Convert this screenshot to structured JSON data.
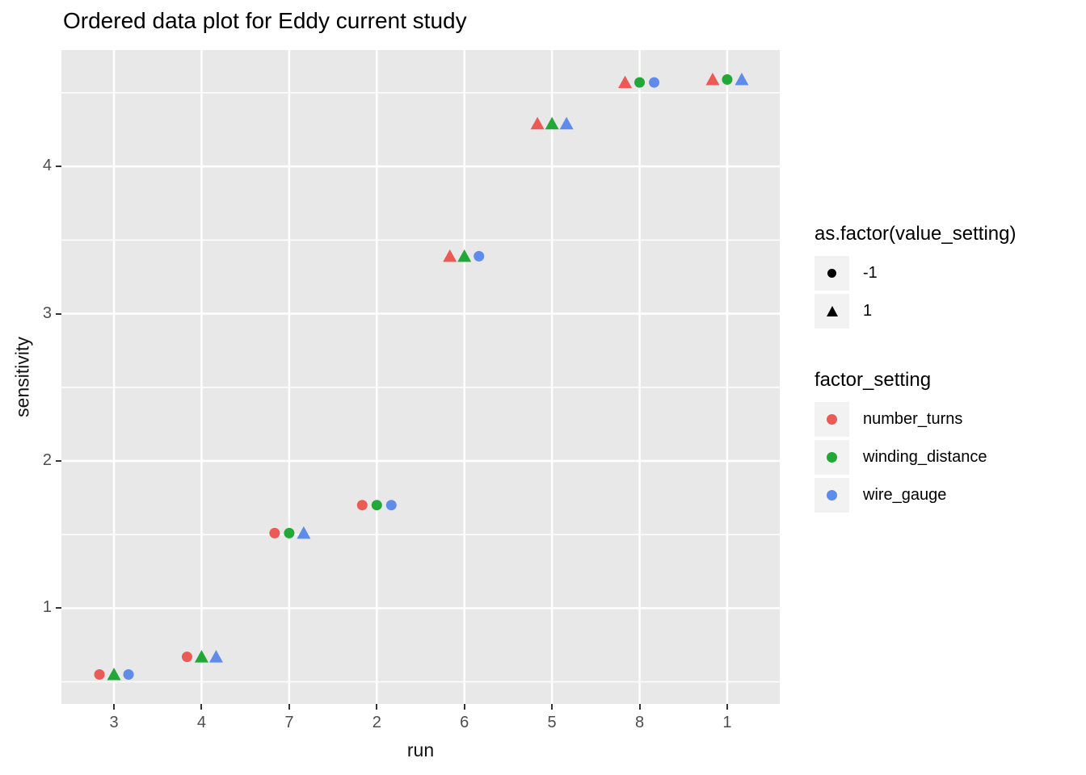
{
  "title": "Ordered data plot for Eddy current study",
  "colors": {
    "panel_bg": "#E8E8E8",
    "grid": "#FFFFFF",
    "tick_mark": "#333333",
    "tick_label": "#4D4D4D",
    "text": "#000000",
    "legend_key_bg": "#F2F2F2"
  },
  "chart_data": {
    "type": "scatter",
    "title": "Ordered data plot for Eddy current study",
    "xlabel": "run",
    "ylabel": "sensitivity",
    "x_categories": [
      "3",
      "4",
      "7",
      "2",
      "6",
      "5",
      "8",
      "1"
    ],
    "y_ticks": [
      1,
      2,
      3,
      4
    ],
    "y_minor_ticks": [
      0.5,
      1.5,
      2.5,
      3.5,
      4.5
    ],
    "ylim": [
      0.35,
      4.79
    ],
    "grid": true,
    "legend_position": "right",
    "shape_map": {
      "-1": "circle",
      "1": "triangle"
    },
    "factor_order": [
      "number_turns",
      "winding_distance",
      "wire_gauge"
    ],
    "factor_colors": {
      "number_turns": "#EB5A55",
      "winding_distance": "#22A838",
      "wire_gauge": "#5F8CEB"
    },
    "runs": [
      {
        "run": "3",
        "sensitivity": 0.55,
        "value_settings": {
          "number_turns": -1,
          "winding_distance": 1,
          "wire_gauge": -1
        }
      },
      {
        "run": "4",
        "sensitivity": 0.67,
        "value_settings": {
          "number_turns": -1,
          "winding_distance": 1,
          "wire_gauge": 1
        }
      },
      {
        "run": "7",
        "sensitivity": 1.51,
        "value_settings": {
          "number_turns": -1,
          "winding_distance": -1,
          "wire_gauge": 1
        }
      },
      {
        "run": "2",
        "sensitivity": 1.7,
        "value_settings": {
          "number_turns": -1,
          "winding_distance": -1,
          "wire_gauge": -1
        }
      },
      {
        "run": "6",
        "sensitivity": 3.39,
        "value_settings": {
          "number_turns": 1,
          "winding_distance": 1,
          "wire_gauge": -1
        }
      },
      {
        "run": "5",
        "sensitivity": 4.29,
        "value_settings": {
          "number_turns": 1,
          "winding_distance": 1,
          "wire_gauge": 1
        }
      },
      {
        "run": "8",
        "sensitivity": 4.57,
        "value_settings": {
          "number_turns": 1,
          "winding_distance": -1,
          "wire_gauge": -1
        }
      },
      {
        "run": "1",
        "sensitivity": 4.59,
        "value_settings": {
          "number_turns": 1,
          "winding_distance": -1,
          "wire_gauge": 1
        }
      }
    ]
  },
  "legend_shape": {
    "title": "as.factor(value_setting)",
    "glyph_color": "#000000",
    "entries": [
      {
        "label": "-1",
        "shape": "circle"
      },
      {
        "label": "1",
        "shape": "triangle"
      }
    ]
  },
  "legend_color": {
    "title": "factor_setting",
    "entries": [
      {
        "label": "number_turns",
        "color": "#EB5A55"
      },
      {
        "label": "winding_distance",
        "color": "#22A838"
      },
      {
        "label": "wire_gauge",
        "color": "#5F8CEB"
      }
    ]
  }
}
